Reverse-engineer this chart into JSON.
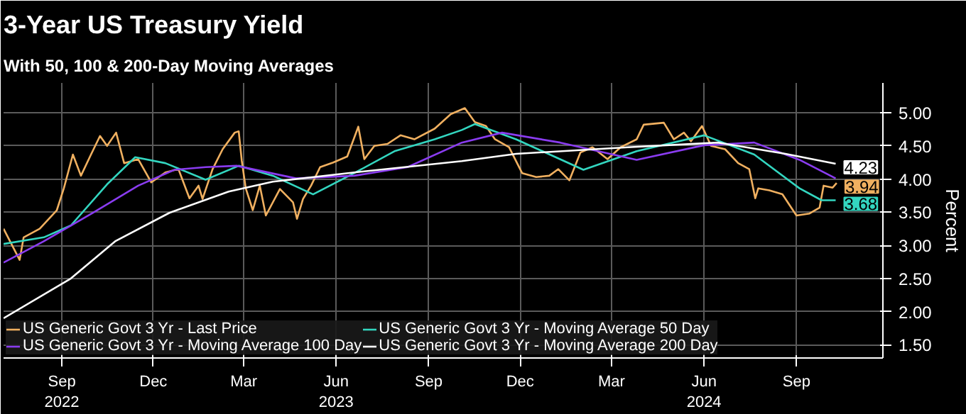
{
  "chart_data": {
    "type": "line",
    "title": "3-Year US Treasury Yield",
    "subtitle": "With 50, 100 & 200-Day Moving Averages",
    "y2label": "Percent",
    "xlim": [
      "2022-07-19",
      "2024-12-10"
    ],
    "y2lim": [
      1.3,
      5.45
    ],
    "xticks": [
      {
        "value": "2022-09-15",
        "label": "Sep\n2022"
      },
      {
        "value": "2022-12-15",
        "label": "Dec"
      },
      {
        "value": "2023-03-15",
        "label": "Mar"
      },
      {
        "value": "2023-06-15",
        "label": "Jun\n2023"
      },
      {
        "value": "2023-09-15",
        "label": "Sep"
      },
      {
        "value": "2023-12-15",
        "label": "Dec"
      },
      {
        "value": "2024-03-15",
        "label": "Mar"
      },
      {
        "value": "2024-06-15",
        "label": "Jun\n2024"
      },
      {
        "value": "2024-09-15",
        "label": "Sep"
      }
    ],
    "y2ticks": [
      {
        "value": 1.5,
        "label": "1.50"
      },
      {
        "value": 2.0,
        "label": "2.00"
      },
      {
        "value": 2.5,
        "label": "2.50"
      },
      {
        "value": 3.0,
        "label": "3.00"
      },
      {
        "value": 3.5,
        "label": "3.50"
      },
      {
        "value": 4.0,
        "label": "4.00"
      },
      {
        "value": 4.5,
        "label": "4.50"
      },
      {
        "value": 5.0,
        "label": "5.00"
      }
    ],
    "grid": true,
    "legend": "bottom left",
    "series": [
      {
        "name": "US Generic Govt 3 Yr - Last Price",
        "color": "#f0b060",
        "axis": "y2",
        "x": [
          "2022-07-19",
          "2022-08-04",
          "2022-08-08",
          "2022-08-24",
          "2022-09-10",
          "2022-09-17",
          "2022-09-26",
          "2022-10-04",
          "2022-10-14",
          "2022-10-23",
          "2022-10-30",
          "2022-11-08",
          "2022-11-16",
          "2022-11-30",
          "2022-12-13",
          "2022-12-27",
          "2023-01-09",
          "2023-01-20",
          "2023-01-29",
          "2023-02-02",
          "2023-02-12",
          "2023-02-22",
          "2023-03-06",
          "2023-03-10",
          "2023-03-13",
          "2023-03-17",
          "2023-03-24",
          "2023-03-31",
          "2023-04-06",
          "2023-04-20",
          "2023-05-03",
          "2023-05-07",
          "2023-05-13",
          "2023-05-21",
          "2023-05-30",
          "2023-06-12",
          "2023-06-26",
          "2023-07-07",
          "2023-07-13",
          "2023-07-23",
          "2023-08-05",
          "2023-08-18",
          "2023-09-01",
          "2023-09-21",
          "2023-10-07",
          "2023-10-21",
          "2023-10-31",
          "2023-11-11",
          "2023-11-20",
          "2023-12-04",
          "2023-12-17",
          "2023-12-31",
          "2024-01-13",
          "2024-01-22",
          "2024-02-02",
          "2024-02-13",
          "2024-02-25",
          "2024-03-11",
          "2024-03-24",
          "2024-04-09",
          "2024-04-16",
          "2024-05-06",
          "2024-05-16",
          "2024-05-26",
          "2024-06-02",
          "2024-06-13",
          "2024-06-22",
          "2024-07-06",
          "2024-07-19",
          "2024-07-30",
          "2024-08-05",
          "2024-08-08",
          "2024-08-19",
          "2024-09-01",
          "2024-09-15",
          "2024-09-28",
          "2024-10-08",
          "2024-10-12",
          "2024-10-21",
          "2024-10-25"
        ],
        "values": [
          3.25,
          2.78,
          3.12,
          3.25,
          3.53,
          3.86,
          4.37,
          4.05,
          4.37,
          4.65,
          4.5,
          4.7,
          4.24,
          4.3,
          3.95,
          4.1,
          4.15,
          3.71,
          3.9,
          3.7,
          4.15,
          4.45,
          4.7,
          4.72,
          4.28,
          3.86,
          3.53,
          3.9,
          3.45,
          3.85,
          3.65,
          3.4,
          3.7,
          3.9,
          4.18,
          4.25,
          4.34,
          4.79,
          4.3,
          4.5,
          4.53,
          4.66,
          4.6,
          4.76,
          4.98,
          5.07,
          4.86,
          4.8,
          4.6,
          4.48,
          4.09,
          4.03,
          4.05,
          4.15,
          3.98,
          4.4,
          4.48,
          4.3,
          4.48,
          4.6,
          4.82,
          4.85,
          4.6,
          4.7,
          4.57,
          4.8,
          4.5,
          4.45,
          4.24,
          4.15,
          3.71,
          3.86,
          3.83,
          3.77,
          3.45,
          3.48,
          3.57,
          3.9,
          3.87,
          3.94
        ],
        "value_labels": [
          null,
          null,
          null,
          null,
          null,
          null,
          null,
          null,
          null,
          null,
          null,
          null,
          null,
          null,
          null,
          null,
          null,
          null,
          null,
          null,
          null,
          null,
          null,
          null,
          null,
          null,
          null,
          null,
          null,
          null,
          null,
          null,
          null,
          null,
          null,
          null,
          null,
          null,
          null,
          null,
          null,
          null,
          null,
          null,
          null,
          null,
          null,
          null,
          null,
          null,
          null,
          null,
          null,
          null,
          null,
          null,
          null,
          null,
          null,
          null,
          null,
          null,
          null,
          null,
          null,
          null,
          null,
          null,
          null,
          null,
          null,
          null,
          null,
          null,
          null,
          null,
          null,
          null,
          null,
          "3.94"
        ]
      },
      {
        "name": "US Generic Govt 3 Yr - Moving Average 50 Day",
        "color": "#33d6c0",
        "axis": "y2",
        "x": [
          "2022-07-19",
          "2022-08-28",
          "2022-09-24",
          "2022-10-30",
          "2022-11-27",
          "2022-12-27",
          "2023-02-05",
          "2023-03-10",
          "2023-04-13",
          "2023-05-23",
          "2023-07-03",
          "2023-08-12",
          "2023-09-21",
          "2023-10-18",
          "2023-10-31",
          "2023-12-11",
          "2024-02-16",
          "2024-04-09",
          "2024-06-15",
          "2024-08-04",
          "2024-09-18",
          "2024-10-10",
          "2024-10-24"
        ],
        "values": [
          3.02,
          3.12,
          3.3,
          3.92,
          4.33,
          4.24,
          3.99,
          4.2,
          4.05,
          3.77,
          4.09,
          4.42,
          4.6,
          4.74,
          4.83,
          4.6,
          4.14,
          4.42,
          4.66,
          4.37,
          3.86,
          3.68,
          3.68
        ],
        "value_labels": [
          null,
          null,
          null,
          null,
          null,
          null,
          null,
          null,
          null,
          null,
          null,
          null,
          null,
          null,
          null,
          null,
          null,
          null,
          null,
          null,
          null,
          null,
          "3.68"
        ]
      },
      {
        "name": "US Generic Govt 3 Yr - Moving Average 100 Day",
        "color": "#8a3cf0",
        "axis": "y2",
        "x": [
          "2022-07-19",
          "2022-08-28",
          "2022-10-16",
          "2022-11-30",
          "2023-01-05",
          "2023-02-05",
          "2023-03-08",
          "2023-05-06",
          "2023-07-03",
          "2023-08-25",
          "2023-10-18",
          "2023-11-27",
          "2024-01-24",
          "2024-04-09",
          "2024-06-15",
          "2024-08-04",
          "2024-09-18",
          "2024-10-24"
        ],
        "values": [
          2.74,
          3.06,
          3.49,
          3.9,
          4.14,
          4.18,
          4.2,
          4.01,
          4.05,
          4.18,
          4.55,
          4.7,
          4.55,
          4.29,
          4.51,
          4.55,
          4.29,
          4.01
        ]
      },
      {
        "name": "US Generic Govt 3 Yr - Moving Average 200 Day",
        "color": "#ffffff",
        "axis": "y2",
        "x": [
          "2022-07-19",
          "2022-09-24",
          "2022-11-07",
          "2022-12-31",
          "2023-02-28",
          "2023-04-13",
          "2023-07-03",
          "2023-10-18",
          "2023-12-11",
          "2024-03-31",
          "2024-06-29",
          "2024-09-04",
          "2024-10-24"
        ],
        "values": [
          1.9,
          2.5,
          3.06,
          3.49,
          3.81,
          3.96,
          4.1,
          4.27,
          4.38,
          4.48,
          4.55,
          4.38,
          4.23
        ],
        "value_labels": [
          null,
          null,
          null,
          null,
          null,
          null,
          null,
          null,
          null,
          null,
          null,
          null,
          "4.23"
        ]
      }
    ]
  }
}
